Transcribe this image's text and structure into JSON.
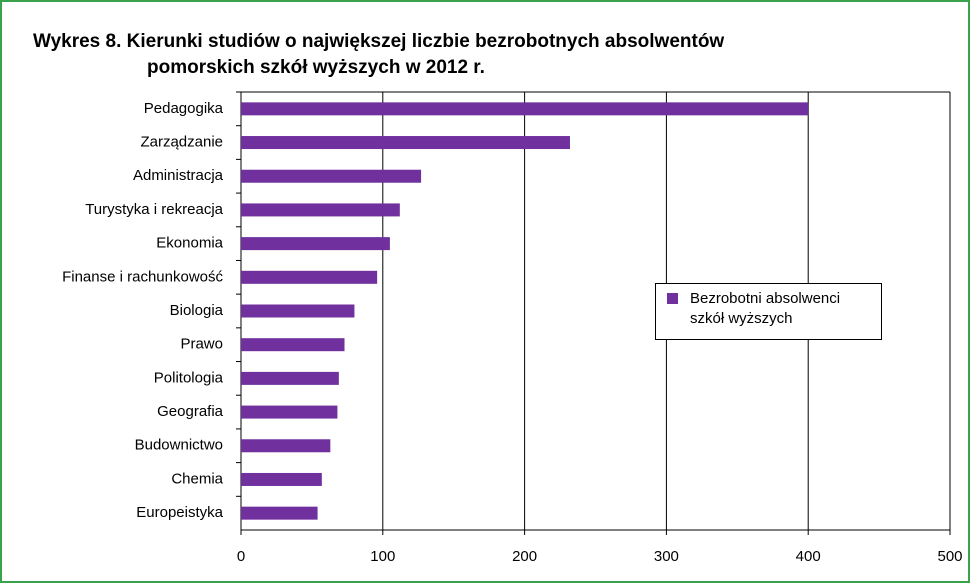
{
  "chart_data": {
    "type": "barh",
    "title": [
      "Wykres 8. Kierunki studiów o największej liczbie bezrobotnych absolwentów",
      "pomorskich szkół wyższych w 2012 r."
    ],
    "categories": [
      "Pedagogika",
      "Zarządzanie",
      "Administracja",
      "Turystyka i rekreacja",
      "Ekonomia",
      "Finanse i rachunkowość",
      "Biologia",
      "Prawo",
      "Politologia",
      "Geografia",
      "Budownictwo",
      "Chemia",
      "Europeistyka"
    ],
    "series": [
      {
        "name": "Bezrobotni absolwenci szkół wyższych",
        "color": "#70309e",
        "values": [
          400,
          232,
          127,
          112,
          105,
          96,
          80,
          73,
          69,
          68,
          63,
          57,
          54
        ]
      }
    ],
    "xlim": [
      0,
      500
    ],
    "xticks": [
      0,
      100,
      200,
      300,
      400,
      500
    ],
    "grid": true
  }
}
